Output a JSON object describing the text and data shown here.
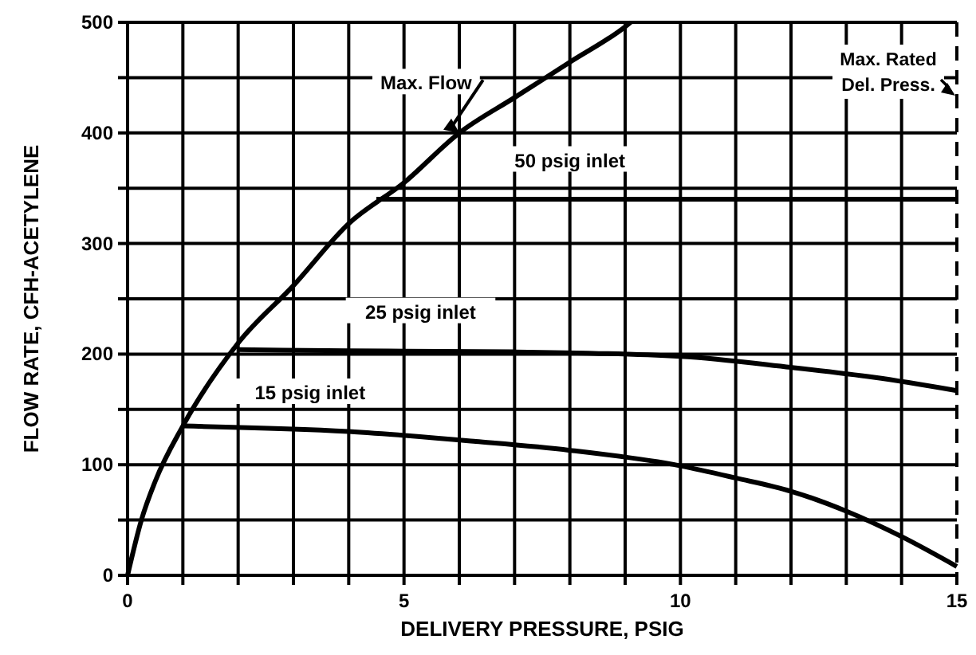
{
  "chart_data": {
    "type": "line",
    "xlabel": "DELIVERY PRESSURE, PSIG",
    "ylabel": "FLOW RATE, CFH-ACETYLENE",
    "xlim": [
      0,
      15
    ],
    "ylim": [
      0,
      500
    ],
    "xticks": [
      0,
      {
        "value": 1,
        "label": null
      },
      {
        "value": 2,
        "label": null
      },
      {
        "value": 3,
        "label": null
      },
      {
        "value": 4,
        "label": null
      },
      5,
      {
        "value": 6,
        "label": null
      },
      {
        "value": 7,
        "label": null
      },
      {
        "value": 8,
        "label": null
      },
      {
        "value": 9,
        "label": null
      },
      10,
      {
        "value": 11,
        "label": null
      },
      {
        "value": 12,
        "label": null
      },
      {
        "value": 13,
        "label": null
      },
      {
        "value": 14,
        "label": null
      },
      15
    ],
    "yticks": [
      0,
      {
        "value": 50,
        "label": null
      },
      100,
      {
        "value": 150,
        "label": null
      },
      200,
      {
        "value": 250,
        "label": null
      },
      300,
      {
        "value": 350,
        "label": null
      },
      400,
      {
        "value": 450,
        "label": null
      },
      500
    ],
    "grid": true,
    "line_style": "solid",
    "series": [
      {
        "name": "Max. Flow",
        "color": "#000000",
        "x": [
          0,
          0.25,
          0.5,
          1,
          2,
          3,
          4,
          5,
          6,
          7,
          8,
          9,
          9.1
        ],
        "values": [
          0,
          50,
          85,
          135,
          210,
          262,
          318,
          355,
          400,
          432,
          464,
          496,
          500
        ]
      },
      {
        "name": "50 psig inlet",
        "color": "#000000",
        "x": [
          4.5,
          7,
          10,
          15
        ],
        "values": [
          340,
          340,
          340,
          340
        ]
      },
      {
        "name": "25 psig inlet",
        "color": "#000000",
        "x": [
          2,
          4,
          7,
          10,
          12,
          13.5,
          15
        ],
        "values": [
          204,
          203,
          202,
          198,
          188,
          179,
          167
        ]
      },
      {
        "name": "15 psig inlet",
        "color": "#000000",
        "x": [
          1,
          4,
          6.3,
          8,
          10,
          11,
          12,
          13,
          14,
          15
        ],
        "values": [
          135,
          130,
          121,
          113,
          99,
          88,
          76,
          58,
          35,
          8
        ]
      }
    ],
    "ref_lines": [
      {
        "axis": "x",
        "value": 15,
        "label": "Max. Rated Del. Press.",
        "line_style": "dashed",
        "color": "#000000"
      }
    ]
  }
}
